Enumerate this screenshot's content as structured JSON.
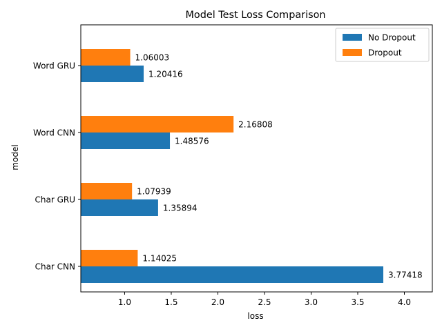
{
  "chart_data": {
    "type": "bar",
    "orientation": "horizontal",
    "title": "Model Test Loss Comparison",
    "xlabel": "loss",
    "ylabel": "model",
    "categories": [
      "Char CNN",
      "Char GRU",
      "Word CNN",
      "Word GRU"
    ],
    "series": [
      {
        "name": "No Dropout",
        "color": "#1f77b4",
        "values": [
          3.77418,
          1.35894,
          1.48576,
          1.20416
        ],
        "value_labels": [
          "3.77418",
          "1.35894",
          "1.48576",
          "1.20416"
        ]
      },
      {
        "name": "Dropout",
        "color": "#ff7f0e",
        "values": [
          1.14025,
          1.07939,
          2.16808,
          1.06003
        ],
        "value_labels": [
          "1.14025",
          "1.07939",
          "2.16808",
          "1.06003"
        ]
      }
    ],
    "xlim": [
      0.53,
      4.3
    ],
    "xticks": [
      1.0,
      1.5,
      2.0,
      2.5,
      3.0,
      3.5,
      4.0
    ],
    "xtick_labels": [
      "1.0",
      "1.5",
      "2.0",
      "2.5",
      "3.0",
      "3.5",
      "4.0"
    ],
    "grid": false,
    "legend_position": "top-right"
  }
}
